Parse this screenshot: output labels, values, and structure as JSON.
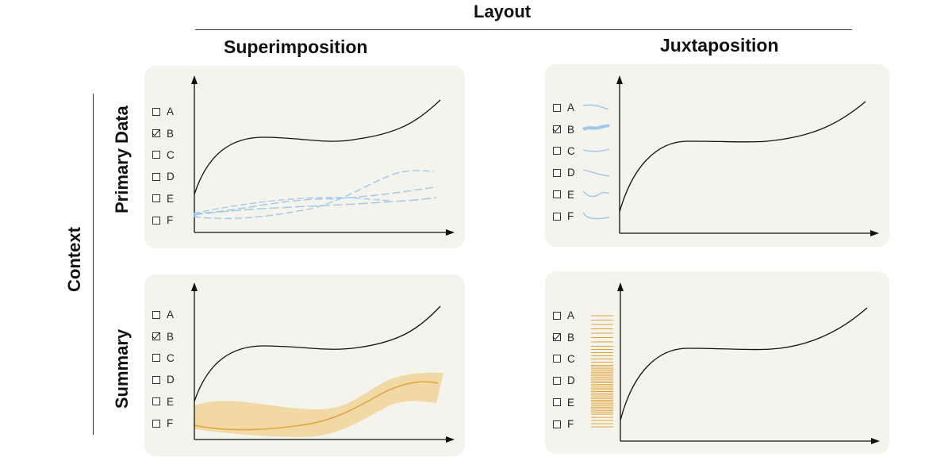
{
  "header": {
    "title": "Layout"
  },
  "columns": [
    {
      "label": "Superimposition"
    },
    {
      "label": "Juxtaposition"
    }
  ],
  "side": {
    "title": "Context"
  },
  "rows": [
    {
      "label": "Primary Data"
    },
    {
      "label": "Summary"
    }
  ],
  "checkbox_options": [
    {
      "label": "A",
      "checked": false
    },
    {
      "label": "B",
      "checked": true
    },
    {
      "label": "C",
      "checked": false
    },
    {
      "label": "D",
      "checked": false
    },
    {
      "label": "E",
      "checked": false
    },
    {
      "label": "F",
      "checked": false
    }
  ],
  "colors": {
    "panel_bg": "#f4f4ec",
    "main_line": "#111111",
    "context_blue": "#9cc8ee",
    "summary_orange": "#e3a33b",
    "band_fill": "#f1d9a6"
  }
}
